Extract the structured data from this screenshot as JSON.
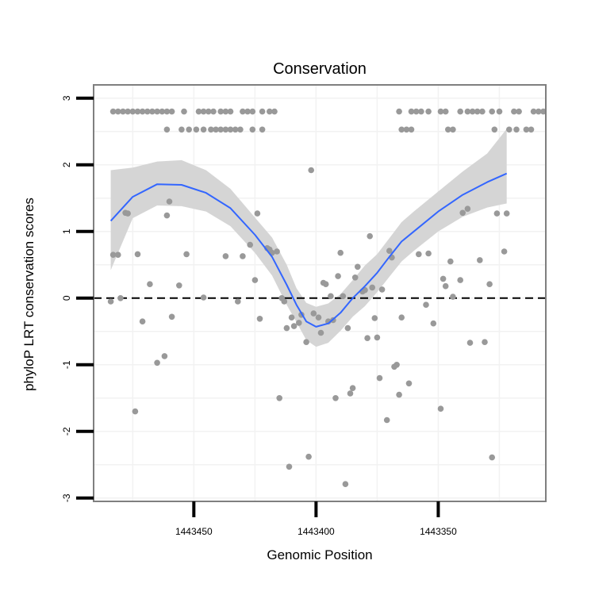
{
  "chart_data": {
    "type": "scatter",
    "title": "Conservation",
    "xlabel": "Genomic Position",
    "ylabel": "phyloP LRT conservation scores",
    "xlim": [
      1443491,
      1443306
    ],
    "x_reversed": true,
    "ylim": [
      -3.05,
      3.2
    ],
    "grid": true,
    "reference_line": {
      "y": 0,
      "style": "dashed",
      "color": "#000000"
    },
    "x_ticks": [
      {
        "value": 1443450,
        "label": "1443450"
      },
      {
        "value": 1443400,
        "label": "1443400"
      },
      {
        "value": 1443350,
        "label": "1443350"
      }
    ],
    "y_ticks": [
      {
        "value": 3,
        "label": "3"
      },
      {
        "value": 2,
        "label": "2"
      },
      {
        "value": 1,
        "label": "1"
      },
      {
        "value": 0,
        "label": "0"
      },
      {
        "value": -1,
        "label": "-1"
      },
      {
        "value": -2,
        "label": "-2"
      },
      {
        "value": -3,
        "label": "-3"
      }
    ],
    "colors": {
      "points": "#999999",
      "smooth_line": "#3366FF",
      "ribbon": "#D3D3D3",
      "panel_border": "#7F7F7F",
      "grid": "#F2F2F2"
    },
    "series": [
      {
        "name": "scores",
        "points": [
          [
            1443483,
            2.8
          ],
          [
            1443481,
            2.8
          ],
          [
            1443479,
            2.8
          ],
          [
            1443477,
            2.8
          ],
          [
            1443475,
            2.8
          ],
          [
            1443473,
            2.8
          ],
          [
            1443471,
            2.8
          ],
          [
            1443469,
            2.8
          ],
          [
            1443467,
            2.8
          ],
          [
            1443465,
            2.8
          ],
          [
            1443463,
            2.8
          ],
          [
            1443461,
            2.8
          ],
          [
            1443459,
            2.8
          ],
          [
            1443454,
            2.8
          ],
          [
            1443448,
            2.8
          ],
          [
            1443446,
            2.8
          ],
          [
            1443444,
            2.8
          ],
          [
            1443442,
            2.8
          ],
          [
            1443439,
            2.8
          ],
          [
            1443437,
            2.8
          ],
          [
            1443435,
            2.8
          ],
          [
            1443430,
            2.8
          ],
          [
            1443428,
            2.8
          ],
          [
            1443426,
            2.8
          ],
          [
            1443422,
            2.8
          ],
          [
            1443419,
            2.8
          ],
          [
            1443417,
            2.8
          ],
          [
            1443461,
            2.53
          ],
          [
            1443455,
            2.53
          ],
          [
            1443452,
            2.53
          ],
          [
            1443449,
            2.53
          ],
          [
            1443446,
            2.53
          ],
          [
            1443443,
            2.53
          ],
          [
            1443441,
            2.53
          ],
          [
            1443439,
            2.53
          ],
          [
            1443437,
            2.53
          ],
          [
            1443435,
            2.53
          ],
          [
            1443433,
            2.53
          ],
          [
            1443431,
            2.53
          ],
          [
            1443426,
            2.53
          ],
          [
            1443422,
            2.53
          ],
          [
            1443366,
            2.8
          ],
          [
            1443361,
            2.8
          ],
          [
            1443359,
            2.8
          ],
          [
            1443357,
            2.8
          ],
          [
            1443354,
            2.8
          ],
          [
            1443349,
            2.8
          ],
          [
            1443347,
            2.8
          ],
          [
            1443341,
            2.8
          ],
          [
            1443338,
            2.8
          ],
          [
            1443336,
            2.8
          ],
          [
            1443334,
            2.8
          ],
          [
            1443332,
            2.8
          ],
          [
            1443328,
            2.8
          ],
          [
            1443325,
            2.8
          ],
          [
            1443319,
            2.8
          ],
          [
            1443317,
            2.8
          ],
          [
            1443311,
            2.8
          ],
          [
            1443309,
            2.8
          ],
          [
            1443307,
            2.8
          ],
          [
            1443365,
            2.53
          ],
          [
            1443363,
            2.53
          ],
          [
            1443361,
            2.53
          ],
          [
            1443346,
            2.53
          ],
          [
            1443344,
            2.53
          ],
          [
            1443327,
            2.53
          ],
          [
            1443321,
            2.53
          ],
          [
            1443318,
            2.53
          ],
          [
            1443314,
            2.53
          ],
          [
            1443312,
            2.53
          ],
          [
            1443484,
            -0.05
          ],
          [
            1443483,
            0.65
          ],
          [
            1443481,
            0.65
          ],
          [
            1443480,
            0.0
          ],
          [
            1443478,
            1.28
          ],
          [
            1443477,
            1.27
          ],
          [
            1443474,
            -1.7
          ],
          [
            1443473,
            0.66
          ],
          [
            1443471,
            -0.35
          ],
          [
            1443468,
            0.21
          ],
          [
            1443465,
            -0.97
          ],
          [
            1443462,
            -0.87
          ],
          [
            1443461,
            1.24
          ],
          [
            1443460,
            1.45
          ],
          [
            1443459,
            -0.28
          ],
          [
            1443456,
            0.19
          ],
          [
            1443453,
            0.66
          ],
          [
            1443446,
            0.01
          ],
          [
            1443437,
            0.63
          ],
          [
            1443432,
            -0.05
          ],
          [
            1443430,
            0.63
          ],
          [
            1443427,
            0.8
          ],
          [
            1443425,
            0.27
          ],
          [
            1443424,
            1.27
          ],
          [
            1443423,
            -0.31
          ],
          [
            1443420,
            0.75
          ],
          [
            1443419,
            0.73
          ],
          [
            1443418,
            0.68
          ],
          [
            1443416,
            0.7
          ],
          [
            1443415,
            -1.5
          ],
          [
            1443414,
            0.0
          ],
          [
            1443413,
            -0.05
          ],
          [
            1443412,
            -0.45
          ],
          [
            1443411,
            -2.53
          ],
          [
            1443410,
            -0.29
          ],
          [
            1443409,
            -0.42
          ],
          [
            1443407,
            -0.37
          ],
          [
            1443406,
            -0.25
          ],
          [
            1443404,
            -0.66
          ],
          [
            1443403,
            -2.38
          ],
          [
            1443402,
            1.92
          ],
          [
            1443401,
            -0.23
          ],
          [
            1443399,
            -0.29
          ],
          [
            1443398,
            -0.52
          ],
          [
            1443397,
            0.23
          ],
          [
            1443396,
            0.21
          ],
          [
            1443395,
            -0.35
          ],
          [
            1443394,
            0.03
          ],
          [
            1443393,
            -0.33
          ],
          [
            1443392,
            -1.5
          ],
          [
            1443391,
            0.33
          ],
          [
            1443390,
            0.68
          ],
          [
            1443389,
            0.03
          ],
          [
            1443388,
            -2.79
          ],
          [
            1443387,
            -0.45
          ],
          [
            1443386,
            -1.43
          ],
          [
            1443385,
            -1.35
          ],
          [
            1443384,
            0.31
          ],
          [
            1443383,
            0.47
          ],
          [
            1443381,
            0.1
          ],
          [
            1443380,
            0.12
          ],
          [
            1443379,
            -0.6
          ],
          [
            1443378,
            0.93
          ],
          [
            1443377,
            0.16
          ],
          [
            1443376,
            -0.3
          ],
          [
            1443375,
            -0.59
          ],
          [
            1443374,
            -1.2
          ],
          [
            1443373,
            0.13
          ],
          [
            1443371,
            -1.83
          ],
          [
            1443370,
            0.71
          ],
          [
            1443369,
            0.61
          ],
          [
            1443368,
            -1.03
          ],
          [
            1443367,
            -1.0
          ],
          [
            1443366,
            -1.45
          ],
          [
            1443365,
            -0.29
          ],
          [
            1443362,
            -1.28
          ],
          [
            1443358,
            0.66
          ],
          [
            1443355,
            -0.1
          ],
          [
            1443354,
            0.67
          ],
          [
            1443352,
            -0.38
          ],
          [
            1443349,
            -1.66
          ],
          [
            1443348,
            0.29
          ],
          [
            1443347,
            0.18
          ],
          [
            1443345,
            0.55
          ],
          [
            1443344,
            0.02
          ],
          [
            1443341,
            0.27
          ],
          [
            1443340,
            1.28
          ],
          [
            1443338,
            1.34
          ],
          [
            1443337,
            -0.67
          ],
          [
            1443333,
            0.57
          ],
          [
            1443331,
            -0.66
          ],
          [
            1443329,
            0.21
          ],
          [
            1443328,
            -2.39
          ],
          [
            1443326,
            1.27
          ],
          [
            1443323,
            0.7
          ],
          [
            1443322,
            1.27
          ]
        ]
      }
    ],
    "smooth": {
      "x": [
        1443484,
        1443475,
        1443465,
        1443455,
        1443445,
        1443435,
        1443425,
        1443418,
        1443412,
        1443408,
        1443404,
        1443400,
        1443395,
        1443390,
        1443385,
        1443380,
        1443375,
        1443370,
        1443365,
        1443360,
        1443350,
        1443340,
        1443330,
        1443322
      ],
      "y": [
        1.16,
        1.52,
        1.71,
        1.7,
        1.58,
        1.35,
        0.95,
        0.62,
        0.2,
        -0.1,
        -0.35,
        -0.43,
        -0.38,
        -0.22,
        0.0,
        0.18,
        0.38,
        0.62,
        0.85,
        1.0,
        1.3,
        1.55,
        1.74,
        1.87
      ],
      "lower": [
        0.42,
        1.2,
        1.39,
        1.38,
        1.3,
        1.08,
        0.68,
        0.34,
        -0.1,
        -0.36,
        -0.63,
        -0.73,
        -0.67,
        -0.49,
        -0.28,
        -0.12,
        0.09,
        0.32,
        0.55,
        0.71,
        1.0,
        1.22,
        1.36,
        1.42
      ],
      "upper": [
        1.92,
        1.96,
        2.05,
        2.07,
        1.92,
        1.64,
        1.21,
        0.91,
        0.5,
        0.15,
        -0.07,
        -0.13,
        -0.08,
        0.06,
        0.27,
        0.49,
        0.66,
        0.9,
        1.14,
        1.3,
        1.6,
        1.9,
        2.17,
        2.54
      ]
    }
  }
}
